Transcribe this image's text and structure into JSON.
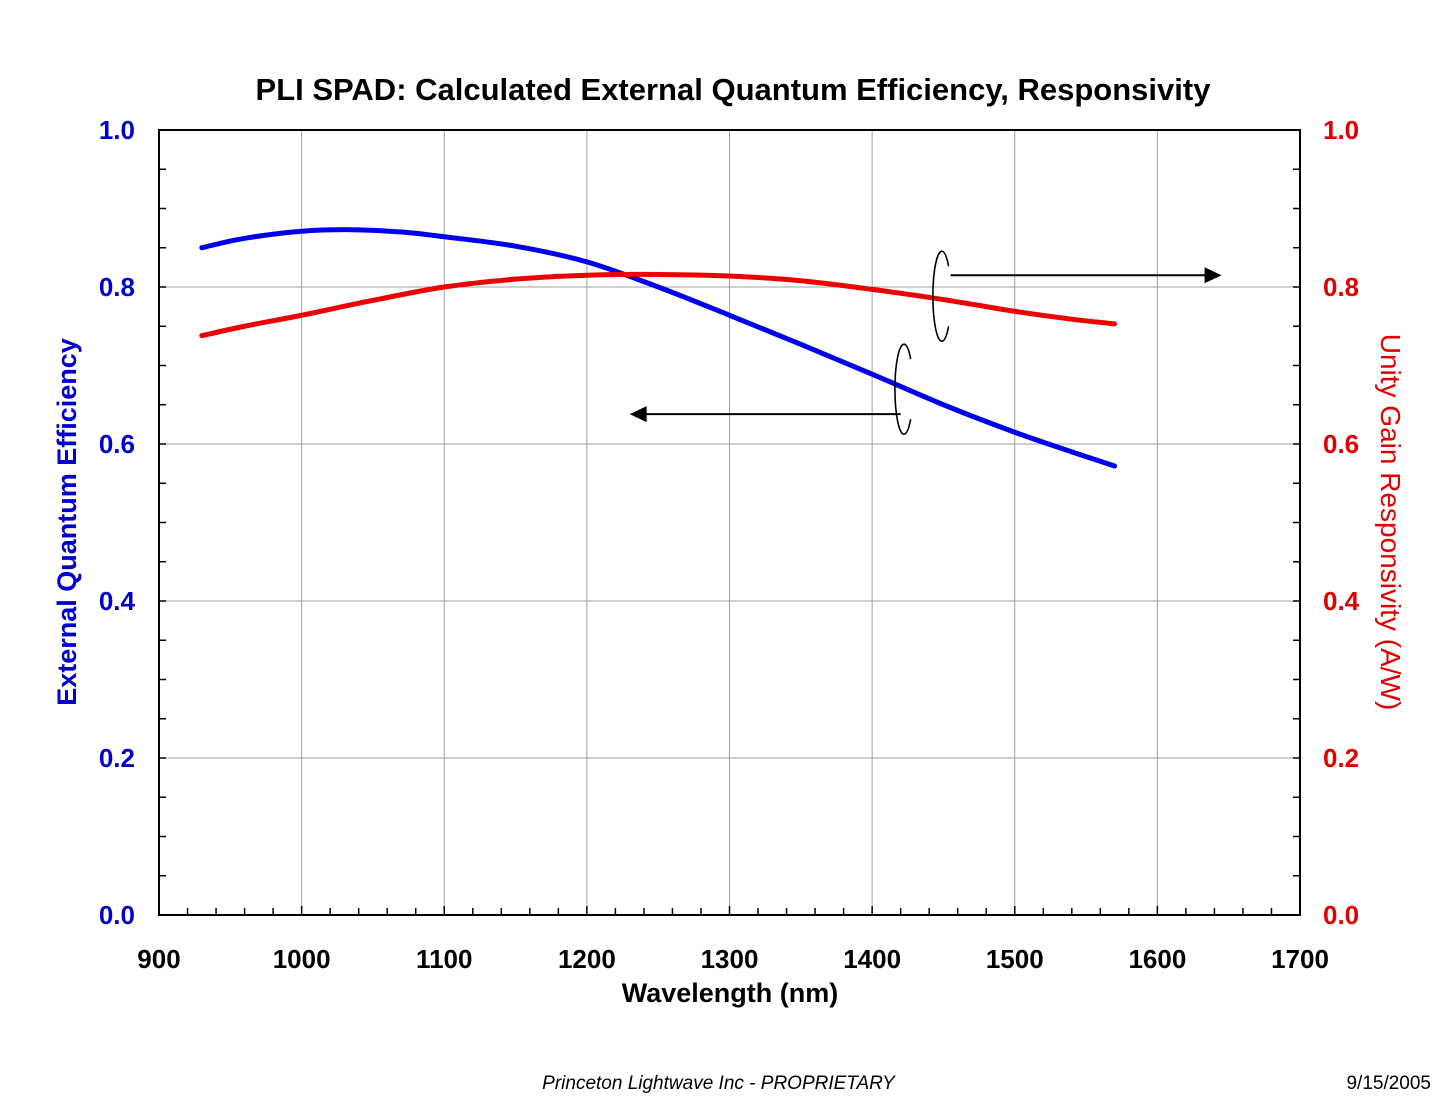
{
  "chart_data": {
    "type": "line",
    "title": "PLI SPAD:  Calculated External Quantum Efficiency, Responsivity",
    "xlabel": "Wavelength (nm)",
    "ylabel": "External Quantum Efficiency",
    "y2label": "Unity Gain Responsivity (A/W)",
    "xlim": [
      900,
      1700
    ],
    "ylim": [
      0,
      1.0
    ],
    "y2lim": [
      0,
      1.0
    ],
    "x_ticks": [
      "900",
      "1000",
      "1100",
      "1200",
      "1300",
      "1400",
      "1500",
      "1600",
      "1700"
    ],
    "y_ticks": [
      "0.0",
      "0.2",
      "0.4",
      "0.6",
      "0.8",
      "1.0"
    ],
    "y2_ticks": [
      "0.0",
      "0.2",
      "0.4",
      "0.6",
      "0.8",
      "1.0"
    ],
    "grid": true,
    "colors": {
      "left_axis": "#0000CC",
      "right_axis": "#E00000",
      "eqe": "#0000EE",
      "resp": "#EE0000"
    },
    "series": [
      {
        "name": "External Quantum Efficiency",
        "axis": "left",
        "x": [
          930,
          960,
          1000,
          1035,
          1070,
          1100,
          1150,
          1200,
          1250,
          1300,
          1350,
          1400,
          1450,
          1500,
          1540,
          1570
        ],
        "values": [
          0.85,
          0.862,
          0.871,
          0.873,
          0.87,
          0.864,
          0.852,
          0.832,
          0.8,
          0.764,
          0.727,
          0.689,
          0.65,
          0.615,
          0.59,
          0.572
        ]
      },
      {
        "name": "Unity Gain Responsivity",
        "axis": "right",
        "x": [
          930,
          960,
          1000,
          1050,
          1100,
          1150,
          1200,
          1250,
          1300,
          1350,
          1400,
          1450,
          1500,
          1540,
          1570
        ],
        "values": [
          0.738,
          0.75,
          0.764,
          0.783,
          0.8,
          0.81,
          0.815,
          0.816,
          0.814,
          0.808,
          0.797,
          0.784,
          0.769,
          0.759,
          0.753
        ]
      }
    ],
    "annotations": [
      {
        "type": "arrow",
        "direction": "right",
        "from_x": 1455,
        "to_x": 1645,
        "y": 0.815,
        "meaning": "red curve uses right axis"
      },
      {
        "type": "arrow",
        "direction": "left",
        "from_x": 1420,
        "to_x": 1230,
        "y": 0.638,
        "meaning": "blue curve uses left axis"
      }
    ]
  },
  "footer": {
    "company": "Princeton Lightwave Inc - PROPRIETARY",
    "date": "9/15/2005"
  }
}
